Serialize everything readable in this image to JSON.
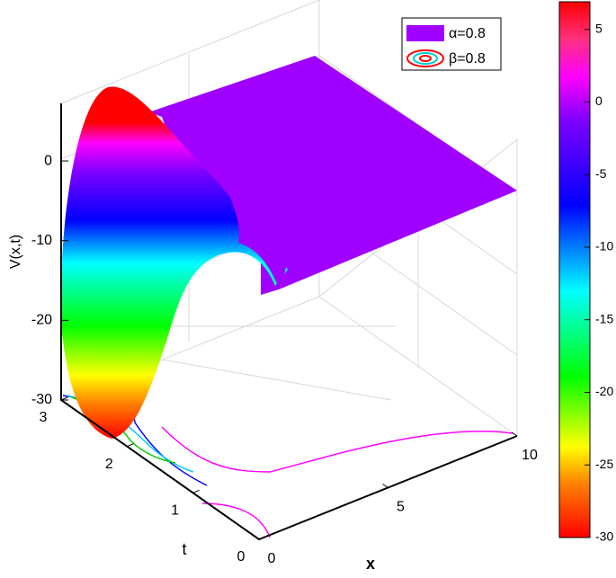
{
  "chart_data": {
    "type": "surface3d",
    "zlabel": "V(x,t)",
    "xlabel": "x",
    "ylabel": "t",
    "xlim": [
      0,
      10
    ],
    "xticks": [
      0,
      5,
      10
    ],
    "ylim": [
      0,
      3
    ],
    "yticks": [
      0,
      1,
      2,
      3
    ],
    "zlim": [
      -30,
      7
    ],
    "zticks": [
      -30,
      -20,
      -10,
      0
    ],
    "clim": [
      -30,
      6.9
    ],
    "cticks": [
      -30,
      -25,
      -20,
      -15,
      -10,
      -5,
      0,
      5
    ],
    "legend": [
      "α=0.8",
      "β=0.8"
    ],
    "legend_position": "upper right",
    "grid": true
  }
}
